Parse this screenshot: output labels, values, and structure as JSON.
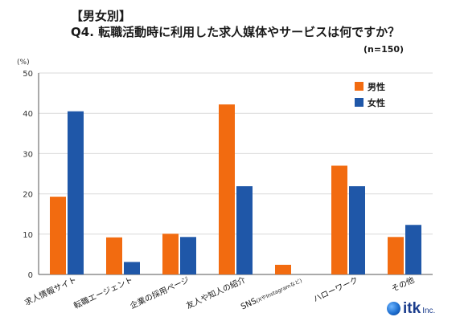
{
  "header": {
    "title": "【男女別】",
    "subtitle": "Q4. 転職活動時に利用した求人媒体やサービスは何ですか？",
    "sample_note": "(n=150)"
  },
  "logo": {
    "text": "itk",
    "suffix": "Inc."
  },
  "colors": {
    "male": "#f26b10",
    "female": "#1f57a8",
    "grid": "#d9d9d9",
    "axis": "#555555"
  },
  "chart_data": {
    "type": "bar",
    "unit_label": "(%)",
    "ylim": [
      0,
      50
    ],
    "yticks": [
      0,
      10,
      20,
      30,
      40,
      50
    ],
    "grid": true,
    "legend_position": "top-right",
    "categories": [
      "求人情報サイト",
      "転職エージェント",
      "企業の採用ページ",
      "友人や知人の紹介",
      "SNS",
      "ハローワーク",
      "その他"
    ],
    "category_notes": [
      "",
      "",
      "",
      "",
      "(XやInstagramなど)",
      "",
      ""
    ],
    "series": [
      {
        "name": "男性",
        "values": [
          19.3,
          9.2,
          10.1,
          42.2,
          2.4,
          27.0,
          9.3
        ]
      },
      {
        "name": "女性",
        "values": [
          40.5,
          3.1,
          9.3,
          21.9,
          0,
          21.9,
          12.3
        ]
      }
    ]
  }
}
